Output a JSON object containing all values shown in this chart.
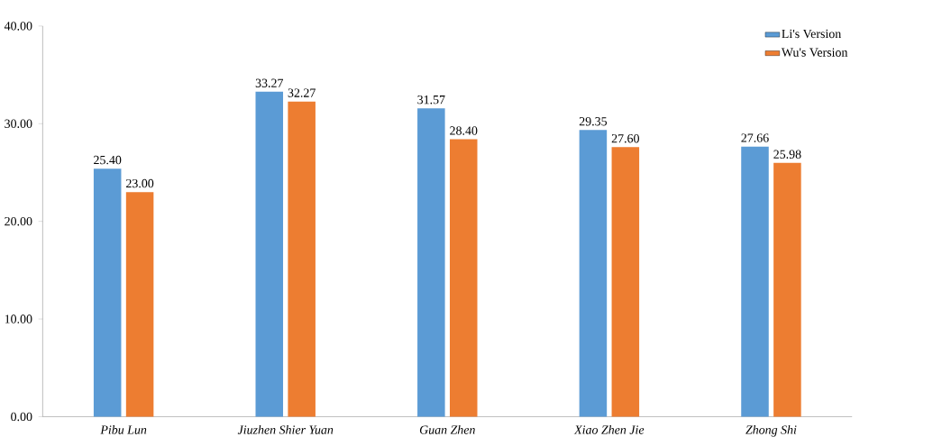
{
  "chart_data": {
    "type": "bar",
    "categories": [
      "Pibu Lun",
      "Jiuzhen Shier Yuan",
      "Guan Zhen",
      "Xiao Zhen Jie",
      "Zhong Shi"
    ],
    "series": [
      {
        "name": "Li's Version",
        "color": "#5b9bd5",
        "values": [
          25.4,
          33.27,
          31.57,
          29.35,
          27.66
        ],
        "value_labels": [
          "25.40",
          "33.27",
          "31.57",
          "29.35",
          "27.66"
        ]
      },
      {
        "name": "Wu's Version",
        "color": "#ed7d31",
        "values": [
          23.0,
          32.27,
          28.4,
          27.6,
          25.98
        ],
        "value_labels": [
          "23.00",
          "32.27",
          "28.40",
          "27.60",
          "25.98"
        ]
      }
    ],
    "ylim": [
      0,
      40
    ],
    "yticks": [
      {
        "value": 0,
        "label": "0.00"
      },
      {
        "value": 10,
        "label": "10.00"
      },
      {
        "value": 20,
        "label": "20.00"
      },
      {
        "value": 30,
        "label": "30.00"
      },
      {
        "value": 40,
        "label": "40.00"
      }
    ],
    "grid": false,
    "legend": "top right"
  }
}
